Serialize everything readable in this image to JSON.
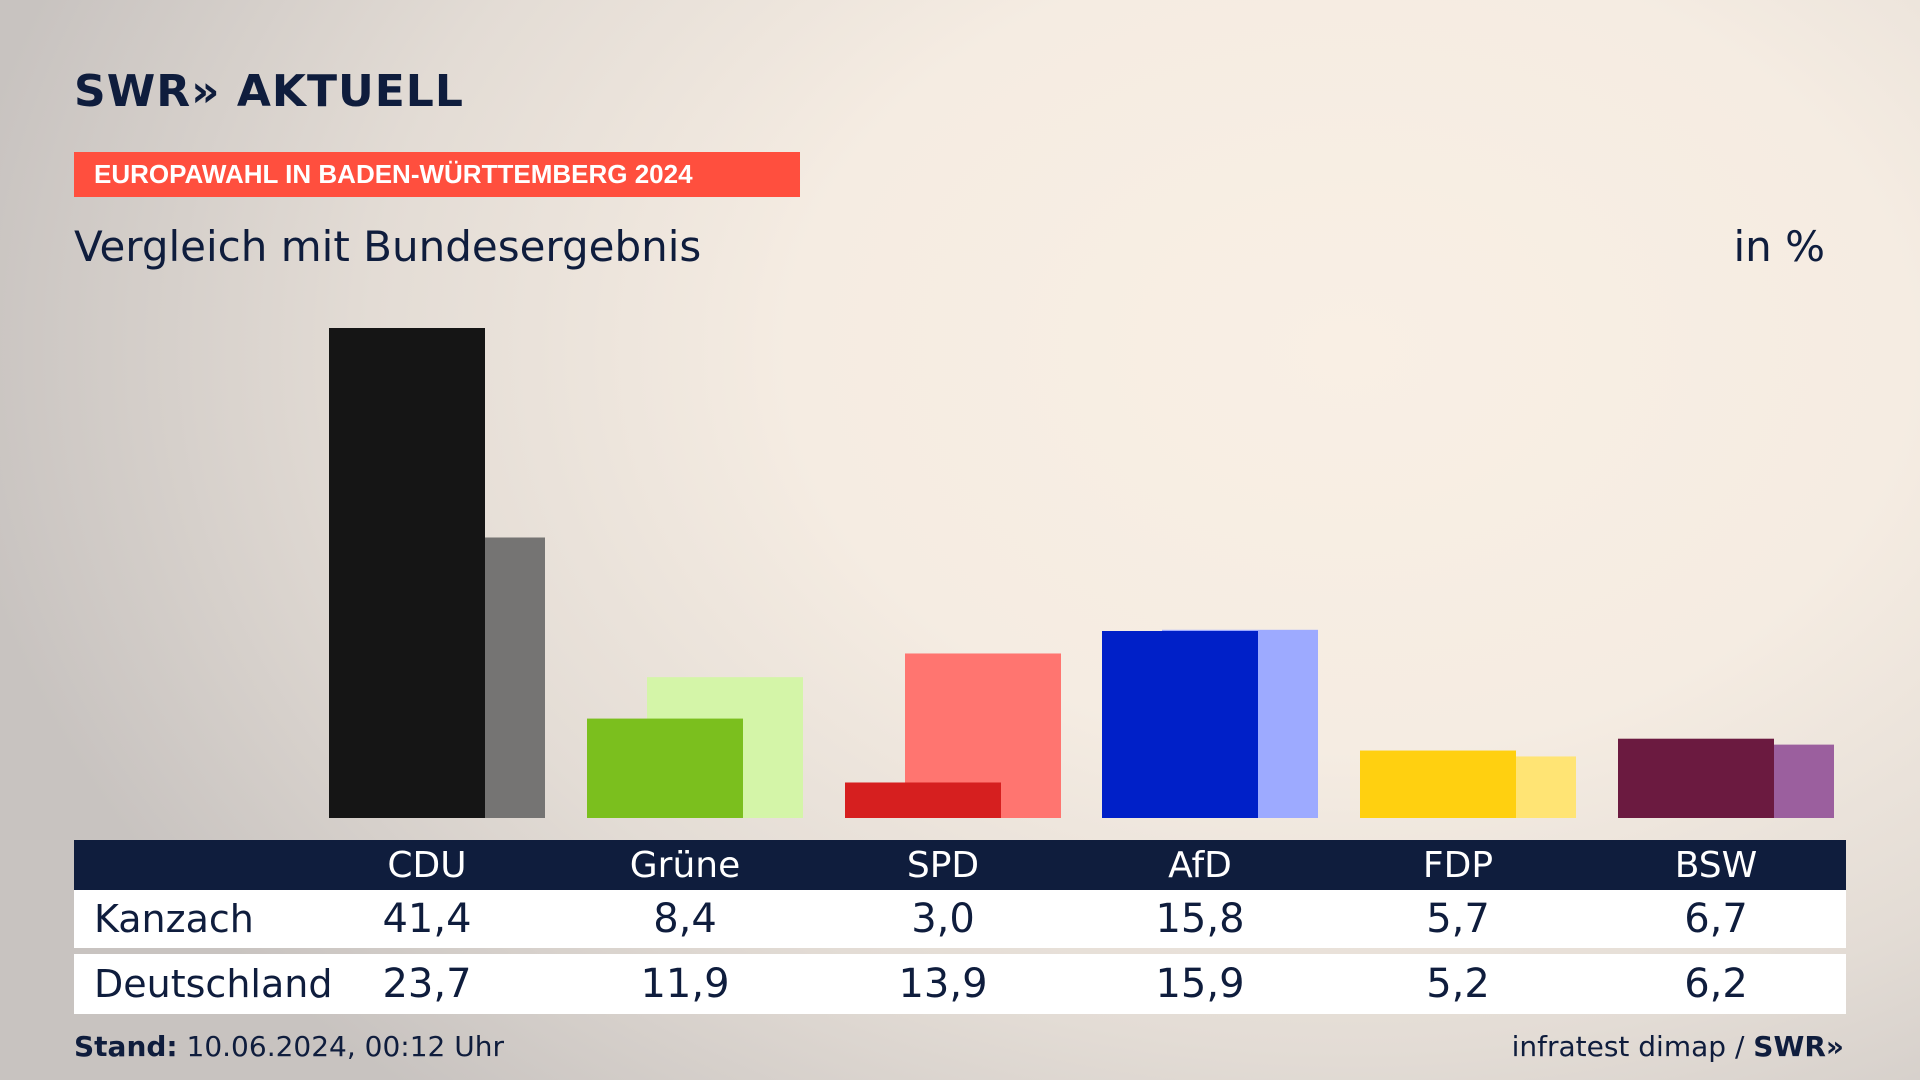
{
  "header": {
    "logo": "SWR» AKTUELL",
    "kicker": "EUROPAWAHL IN BADEN-WÜRTTEMBERG 2024",
    "subtitle": "Vergleich mit Bundesergebnis",
    "unit": "in %"
  },
  "table": {
    "parties": [
      "CDU",
      "Grüne",
      "SPD",
      "AfD",
      "FDP",
      "BSW"
    ],
    "rows": [
      {
        "label": "Kanzach",
        "values": [
          "41,4",
          "8,4",
          "3,0",
          "15,8",
          "5,7",
          "6,7"
        ]
      },
      {
        "label": "Deutschland",
        "values": [
          "23,7",
          "11,9",
          "13,9",
          "15,9",
          "5,2",
          "6,2"
        ]
      }
    ]
  },
  "footer": {
    "stand_label": "Stand:",
    "stand_value": "10.06.2024, 00:12 Uhr",
    "source": "infratest dimap /",
    "source_logo": "SWR»"
  },
  "colors": {
    "primary": [
      "#151515",
      "#7bbf1e",
      "#d61f1f",
      "#0020c8",
      "#ffd010",
      "#6b1a40"
    ],
    "secondary": [
      "#757473",
      "#d4f5a8",
      "#ff7570",
      "#9daaff",
      "#ffe474",
      "#9b5f9e"
    ],
    "navy": "#0f1d3d",
    "kicker": "#ff4f3e"
  },
  "chart_data": {
    "type": "bar",
    "categories": [
      "CDU",
      "Grüne",
      "SPD",
      "AfD",
      "FDP",
      "BSW"
    ],
    "series": [
      {
        "name": "Kanzach",
        "values": [
          41.4,
          8.4,
          3.0,
          15.8,
          5.7,
          6.7
        ]
      },
      {
        "name": "Deutschland",
        "values": [
          23.7,
          11.9,
          13.9,
          15.9,
          5.2,
          6.2
        ]
      }
    ],
    "title": "Vergleich mit Bundesergebnis",
    "ylabel": "in %",
    "ylim": [
      0,
      41.4
    ],
    "grid": false,
    "legend": "none"
  }
}
